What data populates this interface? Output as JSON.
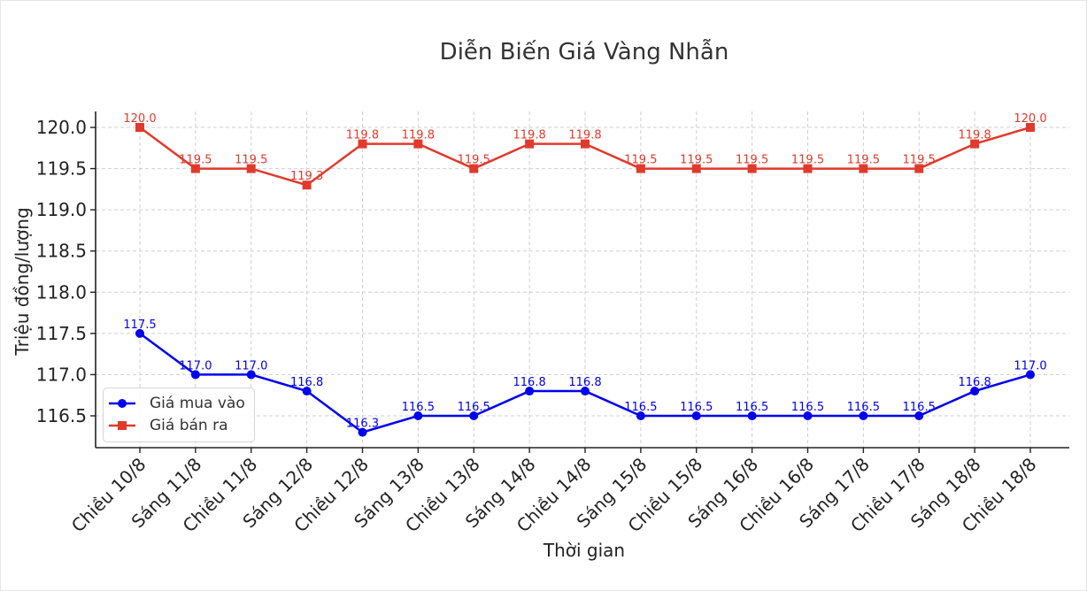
{
  "chart_data": {
    "type": "line",
    "title": "Diễn Biến Giá Vàng Nhẫn",
    "xlabel": "Thời gian",
    "ylabel": "Triệu đồng/lượng",
    "categories": [
      "Chiều 10/8",
      "Sáng 11/8",
      "Chiều 11/8",
      "Sáng 12/8",
      "Chiều 12/8",
      "Sáng 13/8",
      "Chiều 13/8",
      "Sáng 14/8",
      "Chiều 14/8",
      "Sáng 15/8",
      "Chiều 15/8",
      "Sáng 16/8",
      "Chiều 16/8",
      "Sáng 17/8",
      "Chiều 17/8",
      "Sáng 18/8",
      "Chiều 18/8"
    ],
    "yticks": [
      "116.5",
      "117.0",
      "117.5",
      "118.0",
      "118.5",
      "119.0",
      "119.5",
      "120.0"
    ],
    "ylim": [
      116.2,
      120.2
    ],
    "grid": true,
    "legend_position": "lower-left",
    "series": [
      {
        "name": "Giá mua vào",
        "color": "#0000ee",
        "marker": "circle",
        "values": [
          117.5,
          117.0,
          117.0,
          116.8,
          116.3,
          116.5,
          116.5,
          116.8,
          116.8,
          116.5,
          116.5,
          116.5,
          116.5,
          116.5,
          116.5,
          116.8,
          117.0
        ],
        "labels": [
          "117.5",
          "117.0",
          "117.0",
          "116.8",
          "116.3",
          "116.5",
          "116.5",
          "116.8",
          "116.8",
          "116.5",
          "116.5",
          "116.5",
          "116.5",
          "116.5",
          "116.5",
          "116.8",
          "117.0"
        ]
      },
      {
        "name": "Giá bán ra",
        "color": "#e03a2c",
        "marker": "square",
        "values": [
          120.0,
          119.5,
          119.5,
          119.3,
          119.8,
          119.8,
          119.5,
          119.8,
          119.8,
          119.5,
          119.5,
          119.5,
          119.5,
          119.5,
          119.5,
          119.8,
          120.0
        ],
        "labels": [
          "120.0",
          "119.5",
          "119.5",
          "119.3",
          "119.8",
          "119.8",
          "119.5",
          "119.8",
          "119.8",
          "119.5",
          "119.5",
          "119.5",
          "119.5",
          "119.5",
          "119.5",
          "119.8",
          "120.0"
        ]
      }
    ]
  }
}
